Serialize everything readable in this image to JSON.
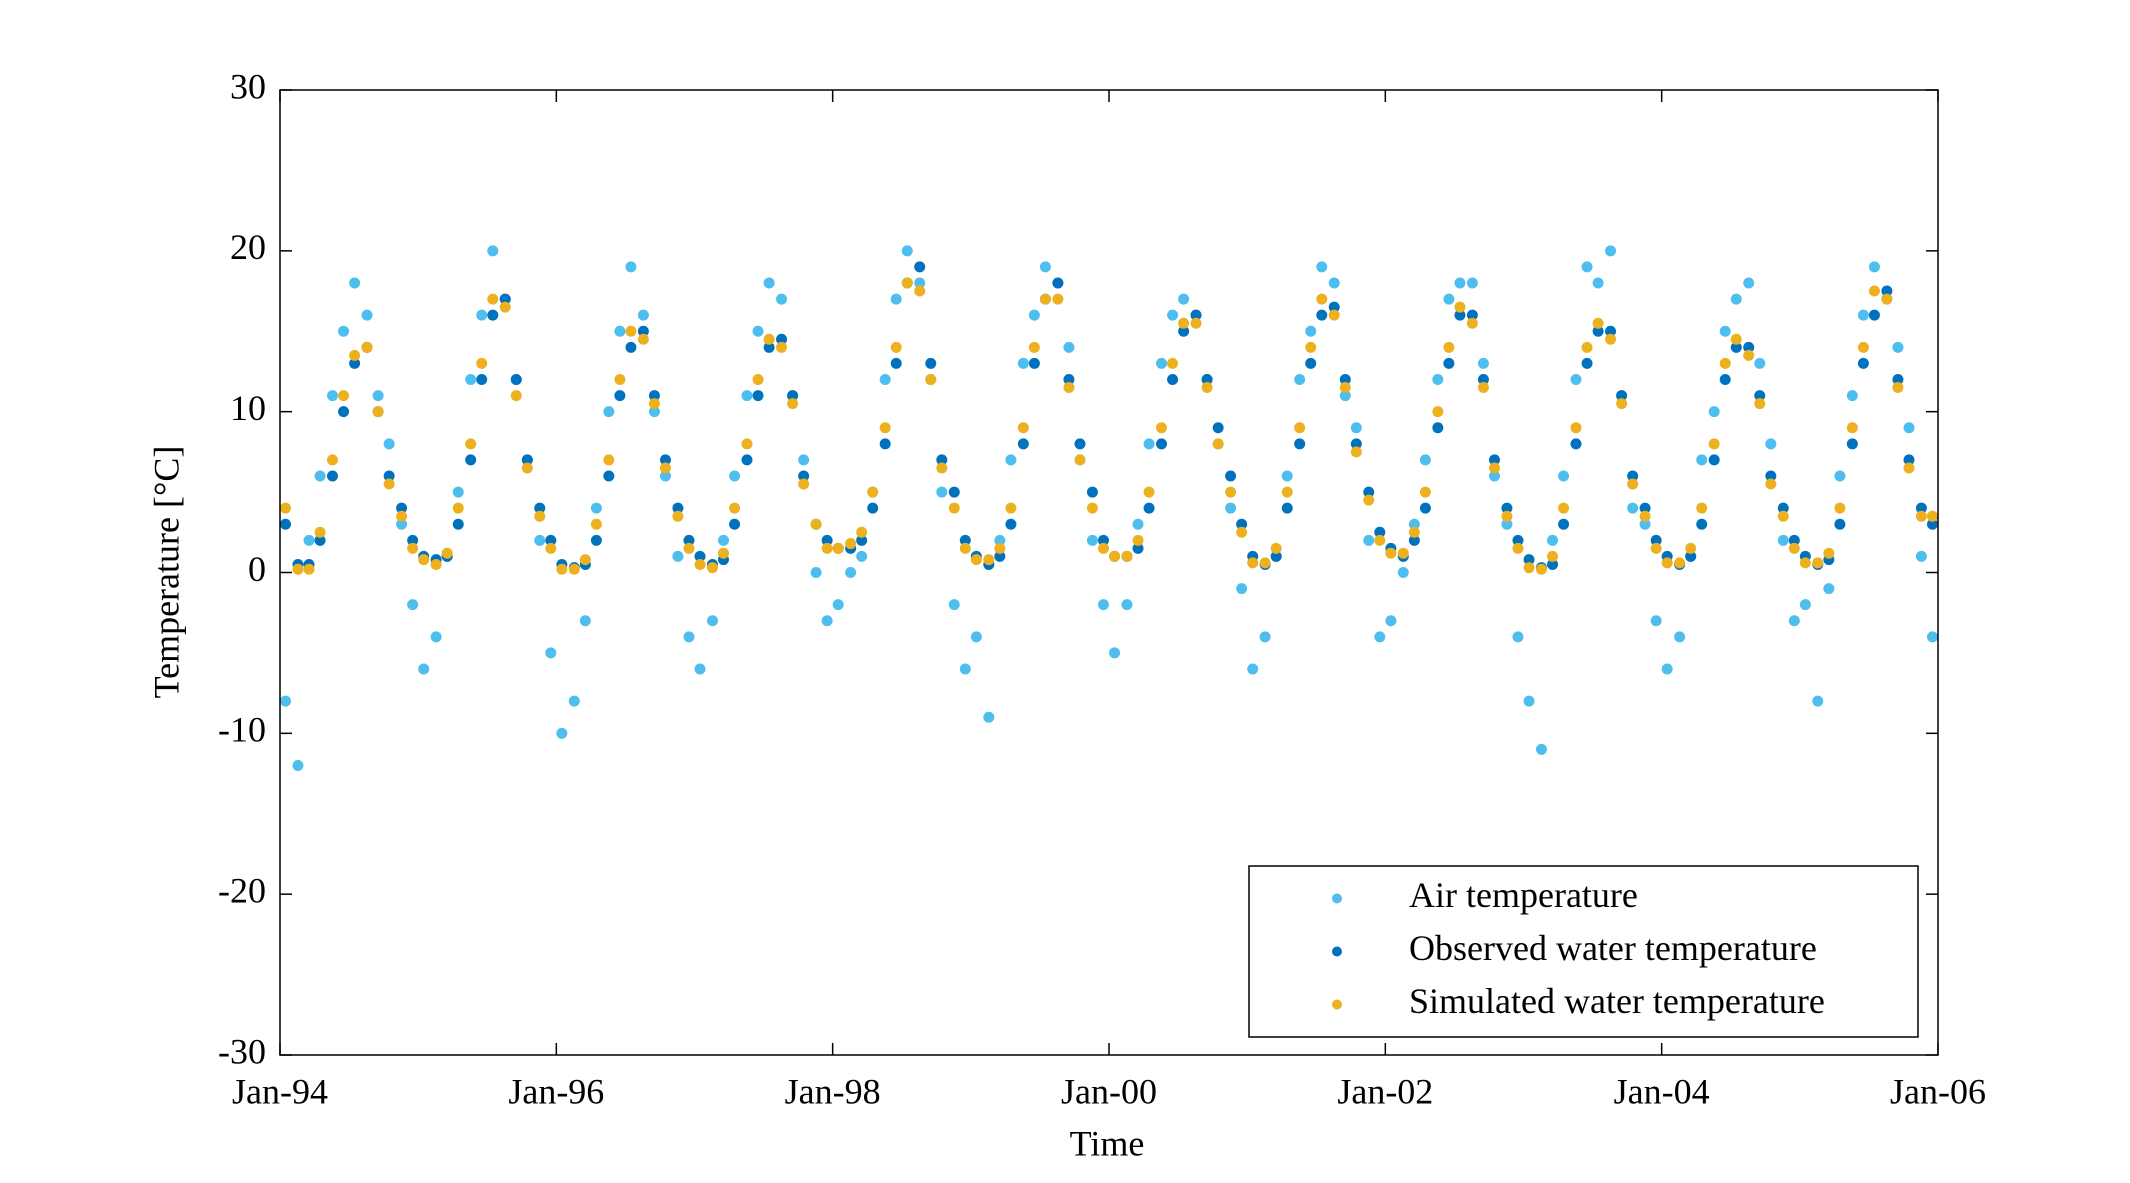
{
  "chart_data": {
    "type": "scatter",
    "x_label": "Time",
    "y_label": "Temperature [°C]",
    "xlim": [
      1994,
      2006
    ],
    "ylim": [
      -30,
      30
    ],
    "xticks": [
      {
        "value": 1994,
        "label": "Jan-94"
      },
      {
        "value": 1996,
        "label": "Jan-96"
      },
      {
        "value": 1998,
        "label": "Jan-98"
      },
      {
        "value": 2000,
        "label": "Jan-00"
      },
      {
        "value": 2002,
        "label": "Jan-02"
      },
      {
        "value": 2004,
        "label": "Jan-04"
      },
      {
        "value": 2006,
        "label": "Jan-06"
      }
    ],
    "yticks": [
      -30,
      -20,
      -10,
      0,
      10,
      20,
      30
    ],
    "legend": "lower right",
    "x": [
      1994.04,
      1994.13,
      1994.21,
      1994.29,
      1994.38,
      1994.46,
      1994.54,
      1994.63,
      1994.71,
      1994.79,
      1994.88,
      1994.96,
      1995.04,
      1995.13,
      1995.21,
      1995.29,
      1995.38,
      1995.46,
      1995.54,
      1995.63,
      1995.71,
      1995.79,
      1995.88,
      1995.96,
      1996.04,
      1996.13,
      1996.21,
      1996.29,
      1996.38,
      1996.46,
      1996.54,
      1996.63,
      1996.71,
      1996.79,
      1996.88,
      1996.96,
      1997.04,
      1997.13,
      1997.21,
      1997.29,
      1997.38,
      1997.46,
      1997.54,
      1997.63,
      1997.71,
      1997.79,
      1997.88,
      1997.96,
      1998.04,
      1998.13,
      1998.21,
      1998.29,
      1998.38,
      1998.46,
      1998.54,
      1998.63,
      1998.71,
      1998.79,
      1998.88,
      1998.96,
      1999.04,
      1999.13,
      1999.21,
      1999.29,
      1999.38,
      1999.46,
      1999.54,
      1999.63,
      1999.71,
      1999.79,
      1999.88,
      1999.96,
      2000.04,
      2000.13,
      2000.21,
      2000.29,
      2000.38,
      2000.46,
      2000.54,
      2000.63,
      2000.71,
      2000.79,
      2000.88,
      2000.96,
      2001.04,
      2001.13,
      2001.21,
      2001.29,
      2001.38,
      2001.46,
      2001.54,
      2001.63,
      2001.71,
      2001.79,
      2001.88,
      2001.96,
      2002.04,
      2002.13,
      2002.21,
      2002.29,
      2002.38,
      2002.46,
      2002.54,
      2002.63,
      2002.71,
      2002.79,
      2002.88,
      2002.96,
      2003.04,
      2003.13,
      2003.21,
      2003.29,
      2003.38,
      2003.46,
      2003.54,
      2003.63,
      2003.71,
      2003.79,
      2003.88,
      2003.96,
      2004.04,
      2004.13,
      2004.21,
      2004.29,
      2004.38,
      2004.46,
      2004.54,
      2004.63,
      2004.71,
      2004.79,
      2004.88,
      2004.96,
      2005.04,
      2005.13,
      2005.21,
      2005.29,
      2005.38,
      2005.46,
      2005.54,
      2005.63,
      2005.71,
      2005.79,
      2005.88,
      2005.96
    ],
    "series": [
      {
        "name": "Air temperature",
        "color": "#4dbeee",
        "values": [
          -8,
          -12,
          2,
          6,
          11,
          15,
          18,
          16,
          11,
          8,
          3,
          -2,
          -6,
          -4,
          1,
          5,
          12,
          16,
          20,
          17,
          12,
          7,
          2,
          -5,
          -10,
          -8,
          -3,
          4,
          10,
          15,
          19,
          16,
          10,
          6,
          1,
          -4,
          -6,
          -3,
          2,
          6,
          11,
          15,
          18,
          17,
          11,
          7,
          0,
          -3,
          -2,
          0,
          1,
          5,
          12,
          17,
          20,
          18,
          12,
          5,
          -2,
          -6,
          -4,
          -9,
          2,
          7,
          13,
          16,
          19,
          18,
          14,
          7,
          2,
          -2,
          -5,
          -2,
          3,
          8,
          13,
          16,
          17,
          16,
          12,
          8,
          4,
          -1,
          -6,
          -4,
          1,
          6,
          12,
          15,
          19,
          18,
          11,
          9,
          2,
          -4,
          -3,
          0,
          3,
          7,
          12,
          17,
          18,
          18,
          13,
          6,
          3,
          -4,
          -8,
          -11,
          2,
          6,
          12,
          19,
          18,
          20,
          11,
          4,
          3,
          -3,
          -6,
          -4,
          1,
          7,
          10,
          15,
          17,
          18,
          13,
          8,
          2,
          -3,
          -2,
          -8,
          -1,
          6,
          11,
          16,
          19,
          17,
          14,
          9,
          1,
          -4
        ]
      },
      {
        "name": "Observed water temperature",
        "color": "#0072bd",
        "values": [
          3,
          0.5,
          0.5,
          2,
          6,
          10,
          13,
          14,
          10,
          6,
          4,
          2,
          1,
          0.8,
          1,
          3,
          7,
          12,
          16,
          17,
          12,
          7,
          4,
          2,
          0.5,
          0.3,
          0.5,
          2,
          6,
          11,
          14,
          15,
          11,
          7,
          4,
          2,
          1,
          0.5,
          0.8,
          3,
          7,
          11,
          14,
          14.5,
          11,
          6,
          3,
          2,
          1.5,
          1.5,
          2,
          4,
          8,
          13,
          18,
          19,
          13,
          7,
          5,
          2,
          1,
          0.5,
          1,
          3,
          8,
          13,
          17,
          18,
          12,
          8,
          5,
          2,
          1,
          1,
          1.5,
          4,
          8,
          12,
          15,
          16,
          12,
          9,
          6,
          3,
          1,
          0.5,
          1,
          4,
          8,
          13,
          16,
          16.5,
          12,
          8,
          5,
          2.5,
          1.5,
          1,
          2,
          4,
          9,
          13,
          16,
          16,
          12,
          7,
          4,
          2,
          0.8,
          0.3,
          0.5,
          3,
          8,
          13,
          15,
          15,
          11,
          6,
          4,
          2,
          1,
          0.5,
          1,
          3,
          7,
          12,
          14,
          14,
          11,
          6,
          4,
          2,
          1,
          0.5,
          0.8,
          3,
          8,
          13,
          16,
          17.5,
          12,
          7,
          4,
          3
        ]
      },
      {
        "name": "Simulated water temperature",
        "color": "#edb120",
        "values": [
          4,
          0.2,
          0.2,
          2.5,
          7,
          11,
          13.5,
          14,
          10,
          5.5,
          3.5,
          1.5,
          0.8,
          0.5,
          1.2,
          4,
          8,
          13,
          17,
          16.5,
          11,
          6.5,
          3.5,
          1.5,
          0.2,
          0.2,
          0.8,
          3,
          7,
          12,
          15,
          14.5,
          10.5,
          6.5,
          3.5,
          1.5,
          0.5,
          0.3,
          1.2,
          4,
          8,
          12,
          14.5,
          14,
          10.5,
          5.5,
          3,
          1.5,
          1.5,
          1.8,
          2.5,
          5,
          9,
          14,
          18,
          17.5,
          12,
          6.5,
          4,
          1.5,
          0.8,
          0.8,
          1.5,
          4,
          9,
          14,
          17,
          17,
          11.5,
          7,
          4,
          1.5,
          1,
          1,
          2,
          5,
          9,
          13,
          15.5,
          15.5,
          11.5,
          8,
          5,
          2.5,
          0.6,
          0.6,
          1.5,
          5,
          9,
          14,
          17,
          16,
          11.5,
          7.5,
          4.5,
          2,
          1.2,
          1.2,
          2.5,
          5,
          10,
          14,
          16.5,
          15.5,
          11.5,
          6.5,
          3.5,
          1.5,
          0.3,
          0.2,
          1,
          4,
          9,
          14,
          15.5,
          14.5,
          10.5,
          5.5,
          3.5,
          1.5,
          0.6,
          0.6,
          1.5,
          4,
          8,
          13,
          14.5,
          13.5,
          10.5,
          5.5,
          3.5,
          1.5,
          0.6,
          0.6,
          1.2,
          4,
          9,
          14,
          17.5,
          17,
          11.5,
          6.5,
          3.5,
          3.5
        ]
      }
    ]
  }
}
